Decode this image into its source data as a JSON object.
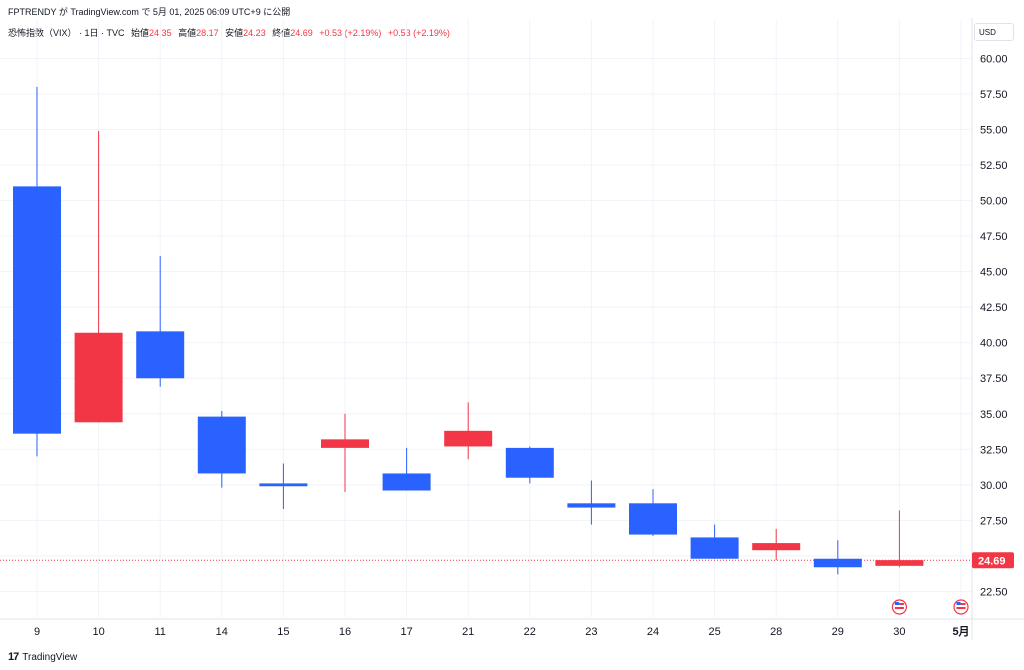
{
  "header": {
    "text": "FPTRENDY が TradingView.com で 5月 01, 2025 06:09 UTC+9 に公開"
  },
  "legend": {
    "symbol": "恐怖指数（VIX） · 1日 · TVC",
    "open_label": "始値",
    "open": "24.35",
    "high_label": "高値",
    "high": "28.17",
    "low_label": "安値",
    "low": "24.23",
    "close_label": "終値",
    "close": "24.69",
    "change": "+0.53 (+2.19%)",
    "change2": "+0.53 (+2.19%)"
  },
  "currency": "USD",
  "footer": {
    "brand": "TradingView",
    "logo": "17"
  },
  "colors": {
    "up": "#f23645",
    "down": "#2962ff",
    "price_line": "#f23645"
  },
  "chart_data": {
    "type": "candlestick",
    "ylim": [
      20.7,
      61.3
    ],
    "yticks": [
      "22.50",
      "25.00",
      "27.50",
      "30.00",
      "32.50",
      "35.00",
      "37.50",
      "40.00",
      "42.50",
      "45.00",
      "47.50",
      "50.00",
      "52.50",
      "55.00",
      "57.50",
      "60.00"
    ],
    "last_price": "24.69",
    "candles": [
      {
        "label": "9",
        "open": 51.0,
        "high": 58.0,
        "low": 32.0,
        "close": 33.6,
        "dir": "down"
      },
      {
        "label": "10",
        "open": 34.4,
        "high": 54.9,
        "low": 34.4,
        "close": 40.7,
        "dir": "up"
      },
      {
        "label": "11",
        "open": 40.8,
        "high": 46.1,
        "low": 36.9,
        "close": 37.5,
        "dir": "down"
      },
      {
        "label": "14",
        "open": 34.8,
        "high": 35.2,
        "low": 29.8,
        "close": 30.8,
        "dir": "down"
      },
      {
        "label": "15",
        "open": 30.1,
        "high": 31.5,
        "low": 28.3,
        "close": 29.9,
        "dir": "down"
      },
      {
        "label": "16",
        "open": 32.6,
        "high": 35.0,
        "low": 29.5,
        "close": 33.2,
        "dir": "up"
      },
      {
        "label": "17",
        "open": 30.8,
        "high": 32.6,
        "low": 29.6,
        "close": 29.6,
        "dir": "down"
      },
      {
        "label": "21",
        "open": 32.7,
        "high": 35.8,
        "low": 31.8,
        "close": 33.8,
        "dir": "up"
      },
      {
        "label": "22",
        "open": 32.6,
        "high": 32.7,
        "low": 30.1,
        "close": 30.5,
        "dir": "down"
      },
      {
        "label": "23",
        "open": 28.7,
        "high": 30.3,
        "low": 27.2,
        "close": 28.4,
        "dir": "down"
      },
      {
        "label": "24",
        "open": 28.7,
        "high": 29.7,
        "low": 26.4,
        "close": 26.5,
        "dir": "down"
      },
      {
        "label": "25",
        "open": 26.3,
        "high": 27.2,
        "low": 24.8,
        "close": 24.8,
        "dir": "down"
      },
      {
        "label": "28",
        "open": 25.4,
        "high": 26.9,
        "low": 24.7,
        "close": 25.9,
        "dir": "up"
      },
      {
        "label": "29",
        "open": 24.8,
        "high": 26.1,
        "low": 23.7,
        "close": 24.2,
        "dir": "down"
      },
      {
        "label": "30",
        "open": 24.3,
        "high": 28.2,
        "low": 24.2,
        "close": 24.7,
        "dir": "up"
      }
    ],
    "extra_xlabel": "5月",
    "event_markers": [
      "30",
      "5月"
    ]
  }
}
